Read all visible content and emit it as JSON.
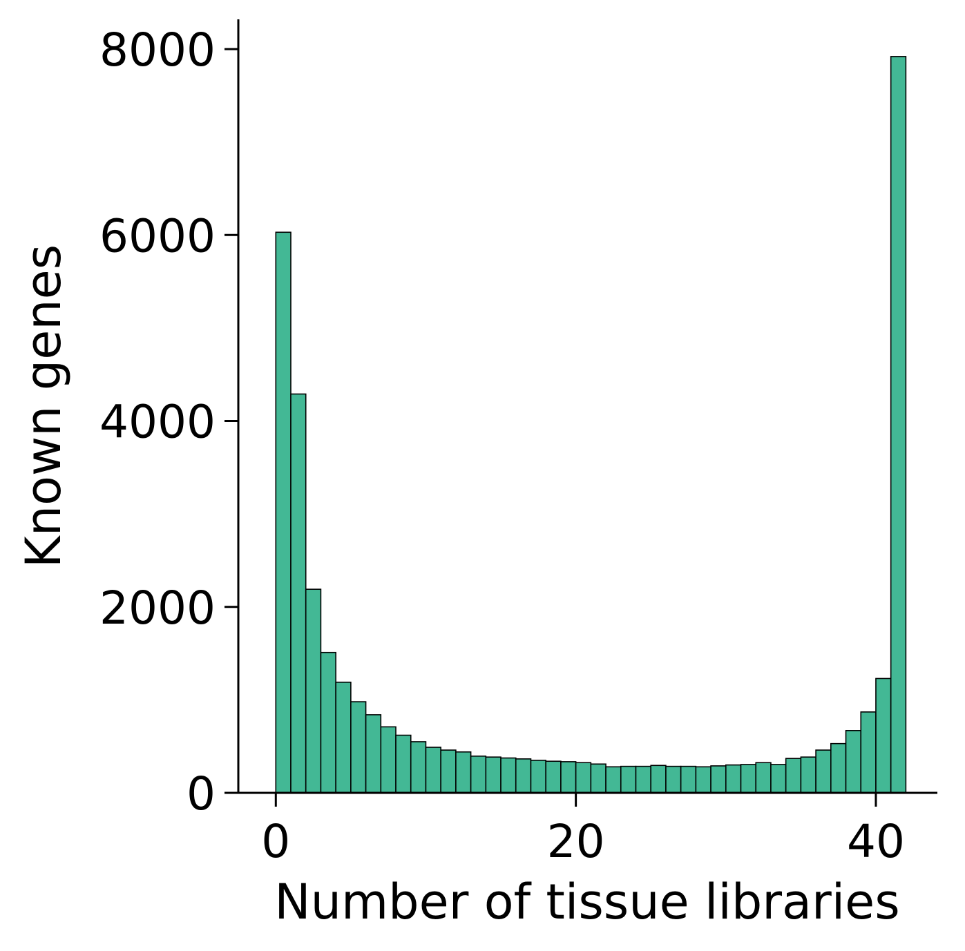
{
  "chart_data": {
    "type": "bar",
    "title": "",
    "xlabel": "Number of tissue libraries",
    "ylabel": "Known genes",
    "bin_start": 0,
    "bin_width": 1,
    "values": [
      6030,
      4290,
      2190,
      1510,
      1190,
      980,
      840,
      710,
      620,
      550,
      490,
      460,
      440,
      395,
      385,
      375,
      365,
      350,
      340,
      335,
      325,
      310,
      280,
      285,
      285,
      295,
      285,
      285,
      280,
      290,
      300,
      305,
      325,
      305,
      370,
      385,
      460,
      530,
      670,
      870,
      1230,
      7920
    ],
    "xlim": [
      -2.5,
      44.1
    ],
    "ylim": [
      0,
      8320
    ],
    "xticks": [
      {
        "value": 0,
        "label": "0"
      },
      {
        "value": 20,
        "label": "20"
      },
      {
        "value": 40,
        "label": "40"
      }
    ],
    "yticks": [
      {
        "value": 0,
        "label": "0"
      },
      {
        "value": 2000,
        "label": "2000"
      },
      {
        "value": 4000,
        "label": "4000"
      },
      {
        "value": 6000,
        "label": "6000"
      },
      {
        "value": 8000,
        "label": "8000"
      }
    ],
    "grid": false,
    "colors": {
      "bar_fill": "#43b895",
      "bar_edge": "#000000",
      "axis": "#000000"
    }
  }
}
